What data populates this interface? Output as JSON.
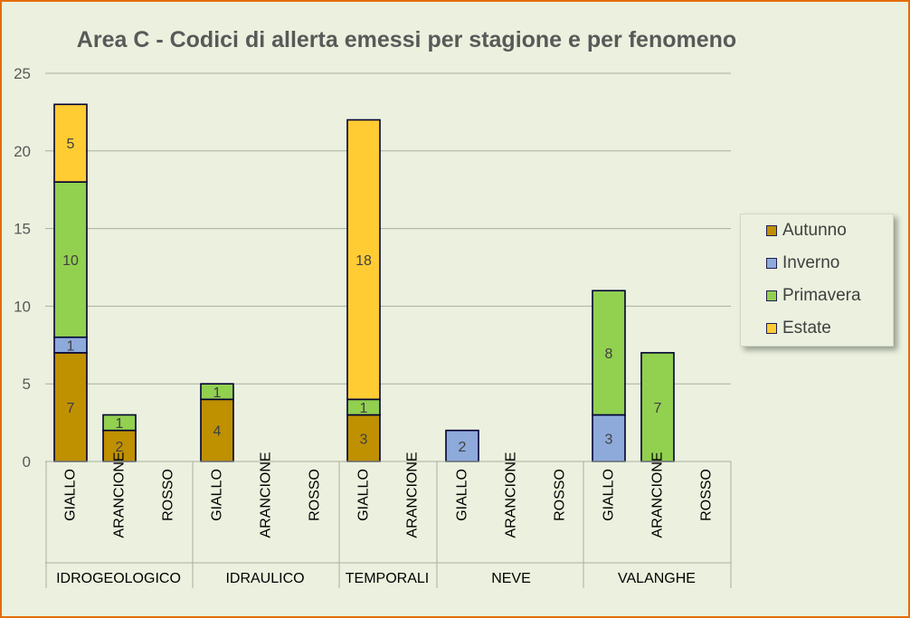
{
  "chart_data": {
    "type": "bar",
    "stacked": true,
    "title": "Area C - Codici di allerta emessi per stagione e per fenomeno",
    "xlabel": "",
    "ylabel": "",
    "ylim": [
      0,
      25
    ],
    "yticks": [
      0,
      5,
      10,
      15,
      20,
      25
    ],
    "grid": true,
    "legend_position": "right",
    "groups": [
      {
        "label": "IDROGEOLOGICO",
        "categories": [
          "GIALLO",
          "ARANCIONE",
          "ROSSO"
        ]
      },
      {
        "label": "IDRAULICO",
        "categories": [
          "GIALLO",
          "ARANCIONE",
          "ROSSO"
        ]
      },
      {
        "label": "TEMPORALI",
        "categories": [
          "GIALLO",
          "ARANCIONE"
        ]
      },
      {
        "label": "NEVE",
        "categories": [
          "GIALLO",
          "ARANCIONE",
          "ROSSO"
        ]
      },
      {
        "label": "VALANGHE",
        "categories": [
          "GIALLO",
          "ARANCIONE",
          "ROSSO"
        ]
      }
    ],
    "series": [
      {
        "name": "Autunno",
        "color": "#bf9000",
        "values": [
          7,
          2,
          0,
          4,
          0,
          0,
          3,
          0,
          0,
          0,
          0,
          0,
          0,
          0
        ]
      },
      {
        "name": "Inverno",
        "color": "#8eaadb",
        "values": [
          1,
          0,
          0,
          0,
          0,
          0,
          0,
          0,
          2,
          0,
          0,
          3,
          0,
          0
        ]
      },
      {
        "name": "Primavera",
        "color": "#92d050",
        "values": [
          10,
          1,
          0,
          1,
          0,
          0,
          1,
          0,
          0,
          0,
          0,
          8,
          7,
          0
        ]
      },
      {
        "name": "Estate",
        "color": "#ffcc33",
        "values": [
          5,
          0,
          0,
          0,
          0,
          0,
          18,
          0,
          0,
          0,
          0,
          0,
          0,
          0
        ]
      }
    ]
  }
}
